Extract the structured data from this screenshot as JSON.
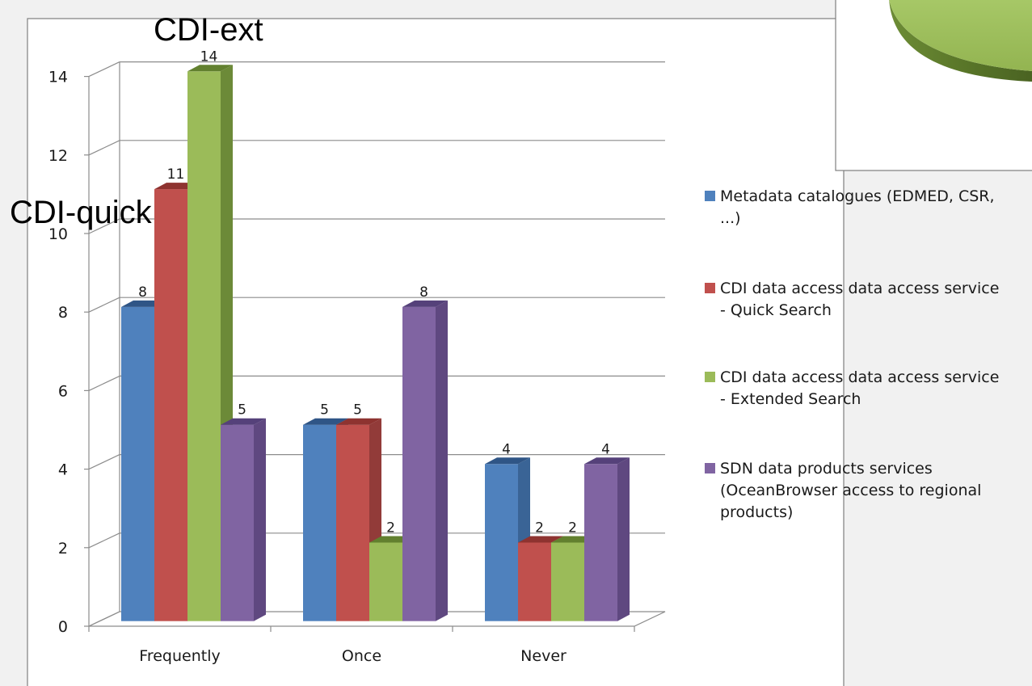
{
  "chart_data": {
    "type": "bar",
    "categories": [
      "Frequently",
      "Once",
      "Never"
    ],
    "series": [
      {
        "name": "Metadata catalogues (EDMED, CSR, ...)",
        "color": "#4f81bd",
        "side": "#3a6496",
        "top": "#2f5586",
        "values": [
          8,
          5,
          4
        ]
      },
      {
        "name": "CDI data access data access service - Quick Search",
        "color": "#c0504d",
        "side": "#923b39",
        "top": "#8e3330",
        "values": [
          11,
          5,
          2
        ]
      },
      {
        "name": "CDI data access data access service - Extended Search",
        "color": "#9bbb59",
        "side": "#6c8a38",
        "top": "#62802f",
        "values": [
          14,
          2,
          2
        ]
      },
      {
        "name": "SDN data products services (OceanBrowser access to regional products)",
        "color": "#8064a2",
        "side": "#5f4880",
        "top": "#55417a",
        "values": [
          5,
          8,
          4
        ]
      }
    ],
    "yticks": [
      "0",
      "2",
      "4",
      "6",
      "8",
      "10",
      "12",
      "14"
    ],
    "ylim": [
      0,
      14
    ],
    "grid": true,
    "legend_position": "right",
    "annotations": [
      "CDI-ext",
      "CDI-quick"
    ]
  },
  "legend": {
    "items": [
      {
        "lines": [
          "Metadata catalogues (EDMED, CSR,",
          "...)"
        ]
      },
      {
        "lines": [
          "CDI data access data access service",
          "- Quick Search"
        ]
      },
      {
        "lines": [
          "CDI data access data access service",
          "- Extended Search"
        ]
      },
      {
        "lines": [
          "SDN data products services",
          "(OceanBrowser access to regional",
          "products)"
        ]
      }
    ]
  }
}
